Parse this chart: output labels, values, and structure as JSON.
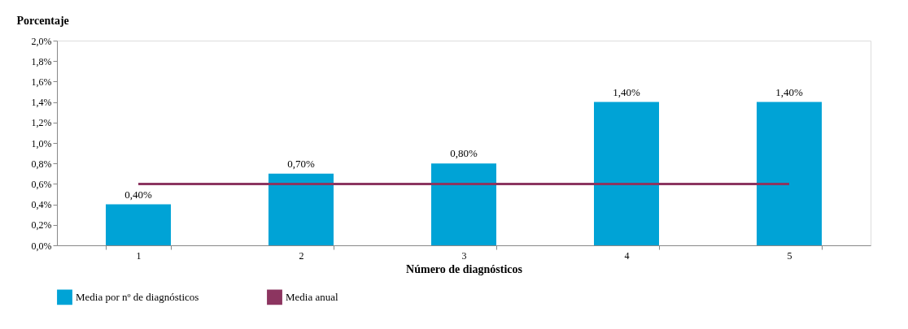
{
  "chart_data": {
    "type": "bar",
    "xlabel": "Número de diagnósticos",
    "ylabel": "Porcentaje",
    "categories": [
      "1",
      "2",
      "3",
      "4",
      "5"
    ],
    "series": [
      {
        "name": "Media por nº de diagnósticos",
        "type": "bar",
        "color": "#00a3d6",
        "values": [
          0.4,
          0.7,
          0.8,
          1.4,
          1.4
        ],
        "value_labels": [
          "0,40%",
          "0,70%",
          "0,80%",
          "1,40%",
          "1,40%"
        ]
      },
      {
        "name": "Media anual",
        "type": "line",
        "color": "#8c3560",
        "values": [
          0.6,
          0.6,
          0.6,
          0.6,
          0.6
        ]
      }
    ],
    "ylim": [
      0,
      2.0
    ],
    "yticks": [
      {
        "value": 0,
        "label": "0,0%"
      },
      {
        "value": 0.2,
        "label": "0,2%"
      },
      {
        "value": 0.4,
        "label": "0,4%"
      },
      {
        "value": 0.6,
        "label": "0,6%"
      },
      {
        "value": 0.8,
        "label": "0,8%"
      },
      {
        "value": 1.0,
        "label": "1,0%"
      },
      {
        "value": 1.2,
        "label": "1,2%"
      },
      {
        "value": 1.4,
        "label": "1,4%"
      },
      {
        "value": 1.6,
        "label": "1,6%"
      },
      {
        "value": 1.8,
        "label": "1,8%"
      },
      {
        "value": 2.0,
        "label": "2,0%"
      }
    ],
    "grid": false,
    "legend": "bottom",
    "marker": "none",
    "line_style": "solid"
  }
}
